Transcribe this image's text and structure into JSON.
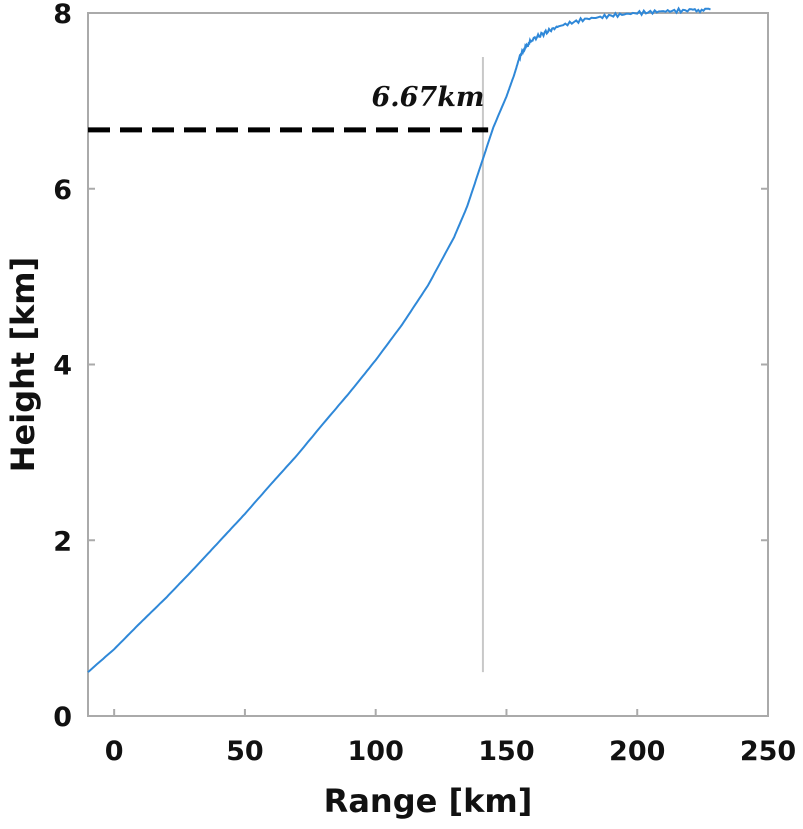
{
  "chart_data": {
    "type": "line",
    "title": "",
    "xlabel": "Range [km]",
    "ylabel": "Height [km]",
    "xlim": [
      -10,
      250
    ],
    "ylim": [
      0,
      8
    ],
    "xticks": [
      0,
      50,
      100,
      150,
      200,
      250
    ],
    "yticks": [
      0,
      2,
      4,
      6,
      8
    ],
    "grid": false,
    "line_color": "#2f88d8",
    "series": [
      {
        "x": [
          -10,
          0,
          10,
          20,
          30,
          40,
          50,
          60,
          70,
          80,
          90,
          100,
          110,
          120,
          130,
          135,
          140,
          145,
          150,
          153,
          155,
          157,
          160,
          165,
          170,
          180,
          190,
          200,
          210,
          220,
          228
        ],
        "y": [
          0.5,
          0.76,
          1.06,
          1.35,
          1.66,
          1.98,
          2.3,
          2.64,
          2.97,
          3.33,
          3.68,
          4.05,
          4.45,
          4.9,
          5.45,
          5.8,
          6.25,
          6.7,
          7.05,
          7.3,
          7.5,
          7.6,
          7.7,
          7.78,
          7.85,
          7.93,
          7.97,
          8.0,
          8.02,
          8.03,
          8.04
        ]
      }
    ],
    "reference_lines": {
      "horizontal": {
        "y": 6.67,
        "x_from": -10,
        "x_to": 143,
        "color": "#000000",
        "style": "dashed"
      },
      "vertical": {
        "x": 141,
        "y_from": 0.5,
        "y_to": 7.5,
        "color": "#c8c8c8"
      }
    },
    "annotation": {
      "text": "6.67km",
      "x": 120,
      "y": 7.0
    }
  }
}
